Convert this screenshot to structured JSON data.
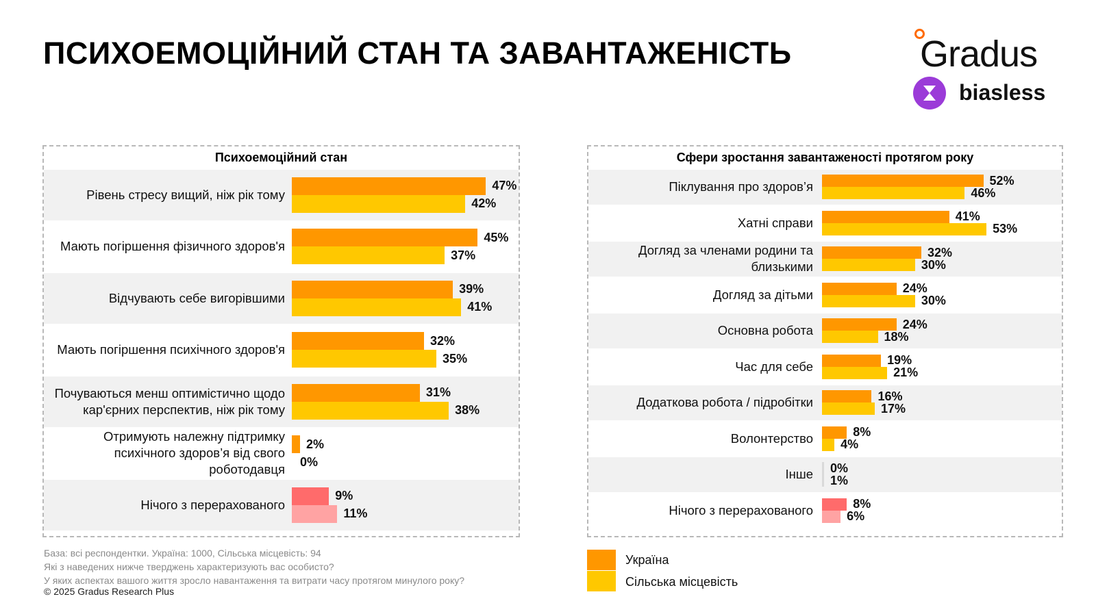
{
  "title": "ПСИХОЕМОЦІЙНИЙ СТАН ТА ЗАВАНТАЖЕНІСТЬ",
  "logos": {
    "gradus": "Gradus",
    "biasless": "biasless"
  },
  "colors": {
    "ukraine": "#ff9700",
    "rural": "#ffc800",
    "none_ukraine": "#ff6b6b",
    "none_rural": "#ffa3a3",
    "other": "#d9d9d9"
  },
  "legend": [
    {
      "label": "Україна",
      "color": "#ff9700"
    },
    {
      "label": "Сільська місцевість",
      "color": "#ffc800"
    }
  ],
  "footnotes": [
    "База: всі респондентки. Україна: 1000, Сільська місцевість: 94",
    "Які з наведених нижче тверджень характеризують вас особисто?",
    "У яких аспектах вашого життя зросло навантаження та витрати часу протягом минулого року?"
  ],
  "copyright": "© 2025 Gradus Research Plus",
  "chart_data": [
    {
      "type": "bar",
      "orientation": "horizontal",
      "title": "Психоемоційний стан",
      "categories": [
        "Рівень стресу вищий, ніж рік тому",
        "Мають погіршення фізичного здоров'я",
        "Відчувають себе вигорівшими",
        "Мають погіршення психічного здоров'я",
        "Почуваються менш оптимістично щодо кар'єрних перспектив, ніж рік тому",
        "Отримують належну підтримку психічного здоров’я від свого роботодавця",
        "Нічого з перерахованого"
      ],
      "series": [
        {
          "name": "Україна",
          "values": [
            47,
            45,
            39,
            32,
            31,
            2,
            9
          ]
        },
        {
          "name": "Сільська місцевість",
          "values": [
            42,
            37,
            41,
            35,
            38,
            0,
            11
          ]
        }
      ],
      "labels": [
        [
          "47%",
          "42%"
        ],
        [
          "45%",
          "37%"
        ],
        [
          "39%",
          "41%"
        ],
        [
          "32%",
          "35%"
        ],
        [
          "31%",
          "38%"
        ],
        [
          "2%",
          "0%"
        ],
        [
          "9%",
          "11%"
        ]
      ],
      "special": {
        "6": "none"
      }
    },
    {
      "type": "bar",
      "orientation": "horizontal",
      "title": "Сфери зростання завантаженості протягом року",
      "categories": [
        "Піклування про здоров’я",
        "Хатні справи",
        "Догляд за членами родини та близькими",
        "Догляд за дітьми",
        "Основна робота",
        "Час для себе",
        "Додаткова робота / підробітки",
        "Волонтерство",
        "Інше",
        "Нічого з перерахованого"
      ],
      "series": [
        {
          "name": "Україна",
          "values": [
            52,
            41,
            32,
            24,
            24,
            19,
            16,
            8,
            0,
            8
          ]
        },
        {
          "name": "Сільська місцевість",
          "values": [
            46,
            53,
            30,
            30,
            18,
            21,
            17,
            4,
            1,
            6
          ]
        }
      ],
      "labels": [
        [
          "52%",
          "46%"
        ],
        [
          "41%",
          "53%"
        ],
        [
          "32%",
          "30%"
        ],
        [
          "24%",
          "30%"
        ],
        [
          "24%",
          "18%"
        ],
        [
          "19%",
          "21%"
        ],
        [
          "16%",
          "17%"
        ],
        [
          "8%",
          "4%"
        ],
        [
          "0%",
          "1%"
        ],
        [
          "8%",
          "6%"
        ]
      ],
      "special": {
        "8": "other",
        "9": "none"
      }
    }
  ]
}
